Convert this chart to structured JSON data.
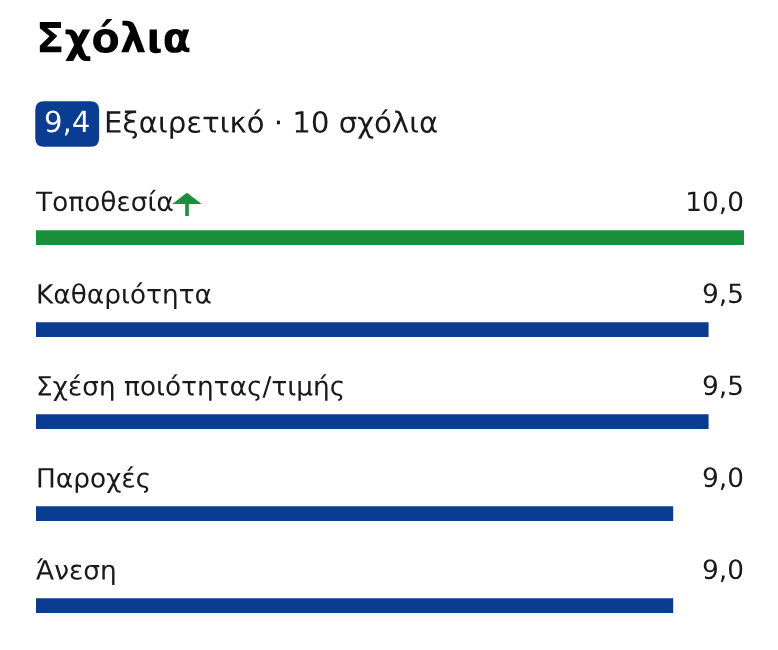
{
  "chart_data": {
    "type": "bar",
    "orientation": "horizontal",
    "title": "Σχόλια",
    "annotations": [
      "9,4",
      "Εξαιρετικό · 10 σχόλια"
    ],
    "categories": [
      "Τοποθεσία",
      "Καθαριότητα",
      "Σχέση ποιότητας/τιμής",
      "Παροχές",
      "Άνεση"
    ],
    "values": [
      10.0,
      9.5,
      9.5,
      9.0,
      9.0
    ],
    "colors": [
      "#1a8f3c",
      "#0a3d91",
      "#0a3d91",
      "#0a3d91",
      "#0a3d91"
    ],
    "value_labels": [
      "10,0",
      "9,5",
      "9,5",
      "9,0",
      "9,0"
    ],
    "xlim": [
      0,
      10
    ]
  }
}
